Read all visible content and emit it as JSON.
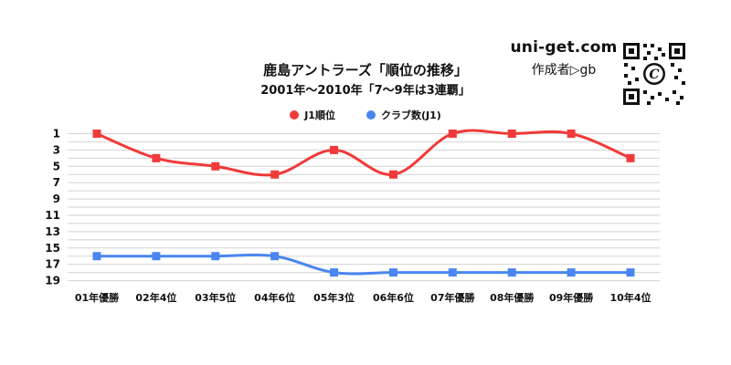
{
  "title": "鹿島アントラーズ「順位の推移」",
  "subtitle": "2001年～2010年「7～9年は3連覇」",
  "brand": {
    "site": "uni-get.com",
    "author": "作成者▷gb",
    "qr_icon": "qr-code-icon"
  },
  "colors": {
    "j1_rank": "#f03a3a",
    "club_count": "#4a86f0"
  },
  "chart_data": {
    "type": "line",
    "title": "鹿島アントラーズ「順位の推移」",
    "subtitle": "2001年～2010年「7～9年は3連覇」",
    "xlabel": "",
    "ylabel": "",
    "categories": [
      "01年優勝",
      "02年4位",
      "03年5位",
      "04年6位",
      "05年3位",
      "06年6位",
      "07年優勝",
      "08年優勝",
      "09年優勝",
      "10年4位"
    ],
    "series": [
      {
        "name": "J1順位",
        "values": [
          1,
          4,
          5,
          6,
          3,
          6,
          1,
          1,
          1,
          4
        ]
      },
      {
        "name": "クラブ数(J1)",
        "values": [
          16,
          16,
          16,
          16,
          18,
          18,
          18,
          18,
          18,
          18
        ]
      }
    ],
    "y_axis": {
      "reversed": true,
      "range": [
        0.5,
        19
      ],
      "tick_labels": [
        "1",
        "3",
        "5",
        "7",
        "9",
        "11",
        "13",
        "15",
        "17",
        "19"
      ],
      "grid_step": 1
    },
    "grid": true,
    "legend": "top-center",
    "markers": {
      "J1順位": "square",
      "クラブ数(J1)": "square"
    },
    "smooth": true
  }
}
